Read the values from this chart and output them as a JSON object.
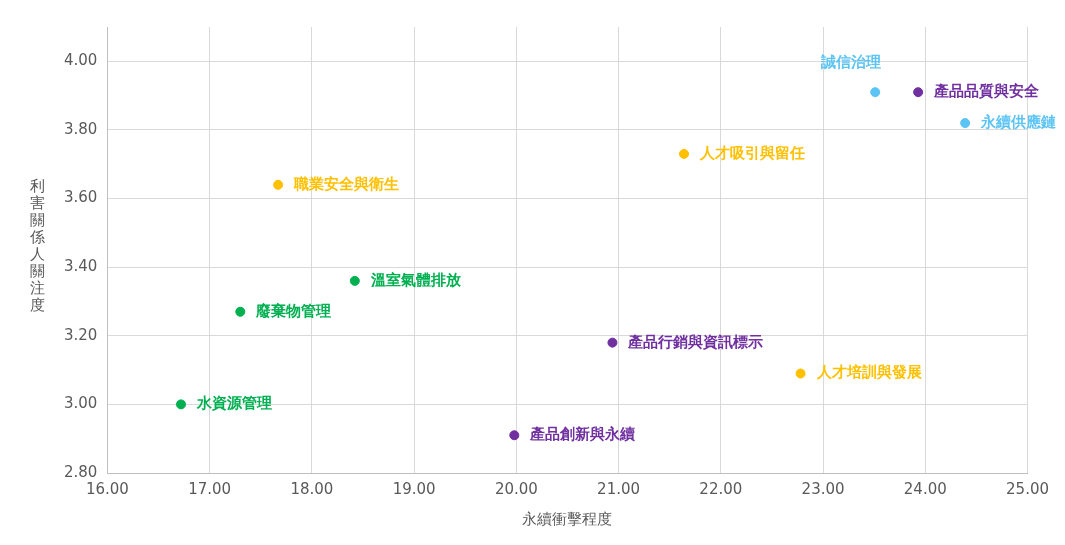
{
  "chart_data": {
    "type": "scatter",
    "xlabel": "永續衝擊程度",
    "ylabel": "利害關係人關注度",
    "xlim": [
      16,
      25
    ],
    "xticks": [
      {
        "value": 16,
        "label": "16.00"
      },
      {
        "value": 17,
        "label": "17.00"
      },
      {
        "value": 18,
        "label": "18.00"
      },
      {
        "value": 19,
        "label": "19.00"
      },
      {
        "value": 20,
        "label": "20.00"
      },
      {
        "value": 21,
        "label": "21.00"
      },
      {
        "value": 22,
        "label": "22.00"
      },
      {
        "value": 23,
        "label": "23.00"
      },
      {
        "value": 24,
        "label": "24.00"
      },
      {
        "value": 25,
        "label": "25.00"
      }
    ],
    "ylim": [
      2.8,
      4.1
    ],
    "yticks": [
      {
        "value": 2.8,
        "label": "2.80"
      },
      {
        "value": 3,
        "label": "3.00"
      },
      {
        "value": 3.2,
        "label": "3.20"
      },
      {
        "value": 3.4,
        "label": "3.40"
      },
      {
        "value": 3.6,
        "label": "3.60"
      },
      {
        "value": 3.8,
        "label": "3.80"
      },
      {
        "value": 4,
        "label": "4.00"
      }
    ],
    "grid": true,
    "legend": false,
    "marker": "circle",
    "series": [
      {
        "name": "誠信治理",
        "color": "#5bc4f5",
        "x": [
          23.51
        ],
        "values": [
          3.91
        ]
      },
      {
        "name": "產品品質與安全",
        "color": "#7030a0",
        "x": [
          23.93
        ],
        "values": [
          3.91
        ]
      },
      {
        "name": "永續供應鏈",
        "color": "#5bc4f5",
        "x": [
          24.39
        ],
        "values": [
          3.82
        ]
      },
      {
        "name": "人才吸引與留任",
        "color": "#ffc000",
        "x": [
          21.64
        ],
        "values": [
          3.73
        ]
      },
      {
        "name": "職業安全與衛生",
        "color": "#ffc000",
        "x": [
          17.67
        ],
        "values": [
          3.64
        ]
      },
      {
        "name": "溫室氣體排放",
        "color": "#00b050",
        "x": [
          18.42
        ],
        "values": [
          3.36
        ]
      },
      {
        "name": "廢棄物管理",
        "color": "#00b050",
        "x": [
          17.3
        ],
        "values": [
          3.27
        ]
      },
      {
        "name": "產品行銷與資訊標示",
        "color": "#7030a0",
        "x": [
          20.94
        ],
        "values": [
          3.18
        ]
      },
      {
        "name": "人才培訓與發展",
        "color": "#ffc000",
        "x": [
          22.78
        ],
        "values": [
          3.09
        ]
      },
      {
        "name": "水資源管理",
        "color": "#00b050",
        "x": [
          16.72
        ],
        "values": [
          3.0
        ]
      },
      {
        "name": "產品創新與永續",
        "color": "#7030a0",
        "x": [
          19.98
        ],
        "values": [
          2.91
        ]
      }
    ]
  }
}
